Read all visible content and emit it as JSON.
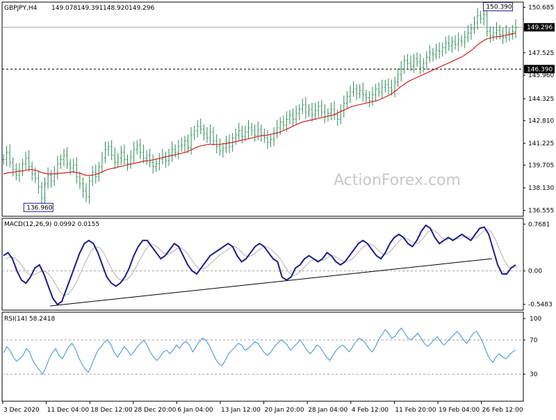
{
  "chart_data": [
    {
      "type": "line",
      "panel": "price",
      "header": {
        "symbol": "GBPJPY,H4",
        "open": "149.078",
        "high": "149.391",
        "low": "148.920",
        "close": "149.296"
      },
      "watermark": "ActionForex.com",
      "ylim": [
        136.2,
        151.0
      ],
      "y_ticks": [
        "150.685",
        "149.170",
        "147.525",
        "145.960",
        "144.325",
        "142.810",
        "141.225",
        "139.705",
        "138.130",
        "136.555"
      ],
      "x_ticks": [
        "3 Dec 2020",
        "11 Dec 04:00",
        "18 Dec 12:00",
        "28 Dec 20:00",
        "6 Jan 04:00",
        "13 Jan 12:00",
        "20 Jan 20:00",
        "28 Jan 04:00",
        "4 Feb 12:00",
        "11 Feb 20:00",
        "19 Feb 04:00",
        "26 Feb 12:00"
      ],
      "current_price": "149.296",
      "support_level": "146.390",
      "annotations": [
        {
          "text": "136.960",
          "value": 136.96,
          "bar_index": 16
        },
        {
          "text": "150.390",
          "value": 150.39,
          "bar_index": 160
        }
      ],
      "close_values": [
        140.1,
        140.6,
        139.9,
        139.4,
        139.0,
        139.3,
        139.8,
        140.2,
        139.6,
        139.1,
        138.8,
        138.2,
        137.4,
        138.4,
        139.0,
        138.6,
        139.2,
        139.8,
        140.1,
        140.4,
        139.8,
        139.5,
        139.7,
        138.9,
        138.4,
        137.9,
        137.5,
        138.6,
        139.2,
        138.9,
        139.6,
        140.2,
        140.8,
        141.0,
        140.4,
        139.9,
        140.2,
        140.6,
        140.1,
        139.8,
        140.3,
        140.8,
        141.1,
        140.6,
        140.2,
        140.4,
        139.9,
        139.6,
        139.8,
        140.1,
        140.3,
        140.0,
        140.4,
        140.8,
        140.6,
        141.0,
        141.1,
        141.4,
        140.9,
        141.8,
        142.1,
        142.4,
        142.2,
        141.9,
        141.6,
        142.0,
        141.4,
        141.0,
        140.7,
        140.9,
        141.3,
        141.0,
        141.6,
        141.8,
        142.1,
        141.7,
        142.0,
        142.3,
        142.1,
        141.8,
        142.2,
        141.8,
        141.6,
        141.3,
        141.5,
        141.9,
        142.3,
        142.7,
        142.5,
        142.9,
        143.2,
        142.9,
        143.3,
        143.6,
        143.9,
        143.4,
        143.6,
        143.2,
        143.5,
        143.8,
        143.4,
        143.1,
        143.3,
        143.6,
        143.2,
        142.9,
        143.5,
        144.0,
        144.5,
        144.8,
        145.0,
        144.7,
        144.9,
        144.6,
        144.4,
        144.2,
        144.6,
        145.0,
        144.8,
        145.1,
        145.3,
        145.1,
        144.9,
        145.5,
        146.0,
        146.4,
        147.0,
        146.8,
        146.6,
        147.1,
        146.9,
        146.5,
        146.8,
        147.2,
        147.5,
        147.4,
        147.7,
        147.6,
        147.9,
        148.2,
        148.0,
        148.3,
        148.1,
        148.4,
        148.3,
        148.6,
        148.9,
        149.2,
        149.6,
        150.1,
        149.9,
        150.2,
        149.0,
        148.7,
        148.9,
        149.1,
        148.8,
        148.6,
        148.9,
        148.8,
        149.0,
        149.3
      ],
      "sma_values": [
        139.1,
        139.15,
        139.2,
        139.2,
        139.25,
        139.3,
        139.3,
        139.35,
        139.4,
        139.4,
        139.35,
        139.3,
        139.2,
        139.15,
        139.1,
        139.1,
        139.1,
        139.1,
        139.15,
        139.15,
        139.2,
        139.2,
        139.25,
        139.2,
        139.15,
        139.1,
        139.0,
        139.0,
        139.0,
        139.05,
        139.1,
        139.2,
        139.3,
        139.4,
        139.45,
        139.5,
        139.55,
        139.6,
        139.65,
        139.7,
        139.75,
        139.8,
        139.85,
        139.9,
        139.95,
        140.0,
        140.0,
        140.05,
        140.1,
        140.15,
        140.2,
        140.25,
        140.3,
        140.35,
        140.4,
        140.45,
        140.5,
        140.55,
        140.6,
        140.7,
        140.8,
        140.9,
        141.0,
        141.05,
        141.1,
        141.15,
        141.15,
        141.15,
        141.15,
        141.15,
        141.2,
        141.2,
        141.25,
        141.3,
        141.35,
        141.4,
        141.45,
        141.5,
        141.55,
        141.6,
        141.65,
        141.7,
        141.75,
        141.75,
        141.8,
        141.85,
        141.9,
        141.95,
        142.0,
        142.1,
        142.2,
        142.3,
        142.4,
        142.5,
        142.6,
        142.7,
        142.75,
        142.8,
        142.85,
        142.9,
        142.95,
        143.0,
        143.05,
        143.1,
        143.15,
        143.2,
        143.3,
        143.4,
        143.5,
        143.6,
        143.7,
        143.8,
        143.85,
        143.9,
        143.95,
        144.0,
        144.05,
        144.1,
        144.15,
        144.2,
        144.3,
        144.4,
        144.5,
        144.6,
        144.75,
        144.9,
        145.1,
        145.25,
        145.4,
        145.55,
        145.65,
        145.75,
        145.85,
        145.95,
        146.05,
        146.15,
        146.25,
        146.35,
        146.45,
        146.55,
        146.65,
        146.75,
        146.85,
        146.95,
        147.05,
        147.15,
        147.25,
        147.4,
        147.55,
        147.7,
        147.9,
        148.1,
        148.25,
        148.4,
        148.5,
        148.55,
        148.6,
        148.65,
        148.65,
        148.7,
        148.75,
        148.8,
        148.85,
        148.9
      ]
    },
    {
      "type": "line",
      "panel": "macd",
      "label": "MACD(12,26,9) 0.0992 0.0155",
      "ylim": [
        -0.62,
        0.84
      ],
      "y_ticks": [
        "0.7681",
        "0.00",
        "-0.5483"
      ],
      "zero_line": 0.0,
      "macd_values": [
        0.25,
        0.3,
        0.2,
        0.0,
        -0.15,
        -0.2,
        -0.1,
        0.05,
        0.1,
        -0.05,
        -0.25,
        -0.45,
        -0.55,
        -0.5,
        -0.3,
        -0.1,
        0.1,
        0.3,
        0.45,
        0.5,
        0.45,
        0.3,
        0.1,
        -0.1,
        -0.2,
        -0.25,
        -0.2,
        -0.1,
        0.05,
        0.25,
        0.4,
        0.5,
        0.5,
        0.4,
        0.3,
        0.2,
        0.25,
        0.35,
        0.45,
        0.4,
        0.25,
        0.1,
        0.0,
        -0.05,
        0.05,
        0.15,
        0.25,
        0.3,
        0.35,
        0.4,
        0.45,
        0.4,
        0.25,
        0.15,
        0.2,
        0.3,
        0.4,
        0.45,
        0.4,
        0.3,
        0.2,
        0.15,
        -0.1,
        -0.15,
        -0.1,
        0.05,
        0.1,
        0.2,
        0.25,
        0.2,
        0.15,
        0.2,
        0.3,
        0.25,
        0.15,
        0.1,
        0.15,
        0.25,
        0.35,
        0.45,
        0.5,
        0.45,
        0.35,
        0.25,
        0.2,
        0.3,
        0.45,
        0.55,
        0.6,
        0.55,
        0.45,
        0.4,
        0.5,
        0.65,
        0.75,
        0.7,
        0.55,
        0.45,
        0.5,
        0.55,
        0.5,
        0.55,
        0.6,
        0.55,
        0.5,
        0.6,
        0.7,
        0.72,
        0.6,
        0.35,
        0.1,
        -0.05,
        -0.05,
        0.05,
        0.1
      ],
      "signal_values": [
        0.2,
        0.23,
        0.22,
        0.15,
        0.05,
        -0.05,
        -0.07,
        -0.04,
        0.0,
        -0.01,
        -0.08,
        -0.2,
        -0.33,
        -0.4,
        -0.38,
        -0.28,
        -0.15,
        0.02,
        0.18,
        0.32,
        0.4,
        0.38,
        0.28,
        0.12,
        -0.02,
        -0.12,
        -0.16,
        -0.14,
        -0.07,
        0.06,
        0.2,
        0.33,
        0.42,
        0.43,
        0.38,
        0.3,
        0.27,
        0.3,
        0.36,
        0.38,
        0.33,
        0.23,
        0.12,
        0.04,
        0.03,
        0.08,
        0.15,
        0.22,
        0.28,
        0.33,
        0.38,
        0.4,
        0.35,
        0.27,
        0.23,
        0.26,
        0.32,
        0.38,
        0.4,
        0.36,
        0.29,
        0.22,
        0.1,
        -0.02,
        -0.08,
        -0.05,
        0.02,
        0.1,
        0.17,
        0.19,
        0.17,
        0.18,
        0.23,
        0.25,
        0.21,
        0.16,
        0.15,
        0.19,
        0.26,
        0.35,
        0.42,
        0.44,
        0.41,
        0.34,
        0.27,
        0.28,
        0.35,
        0.44,
        0.52,
        0.54,
        0.5,
        0.45,
        0.46,
        0.54,
        0.64,
        0.68,
        0.63,
        0.55,
        0.51,
        0.53,
        0.52,
        0.53,
        0.56,
        0.56,
        0.53,
        0.56,
        0.63,
        0.68,
        0.65,
        0.52,
        0.34,
        0.17,
        0.06,
        0.05,
        0.07
      ]
    },
    {
      "type": "line",
      "panel": "rsi",
      "label": "RSI(14) 58.2418",
      "ylim": [
        0,
        100
      ],
      "y_ticks": [
        "100",
        "70",
        "30"
      ],
      "levels": [
        70,
        30
      ],
      "rsi_values": [
        55,
        62,
        58,
        50,
        45,
        48,
        52,
        60,
        56,
        46,
        40,
        35,
        30,
        38,
        48,
        55,
        60,
        52,
        48,
        55,
        62,
        66,
        60,
        50,
        42,
        36,
        32,
        40,
        50,
        58,
        62,
        68,
        70,
        64,
        55,
        50,
        56,
        62,
        58,
        52,
        56,
        62,
        66,
        70,
        64,
        56,
        50,
        46,
        50,
        56,
        58,
        54,
        58,
        64,
        60,
        66,
        68,
        64,
        56,
        62,
        68,
        72,
        70,
        64,
        56,
        48,
        42,
        40,
        46,
        54,
        58,
        62,
        66,
        64,
        58,
        60,
        64,
        68,
        66,
        60,
        55,
        52,
        56,
        62,
        66,
        70,
        68,
        64,
        58,
        62,
        66,
        70,
        64,
        58,
        54,
        58,
        64,
        62,
        56,
        50,
        46,
        52,
        58,
        62,
        64,
        60,
        56,
        62,
        68,
        72,
        70,
        66,
        60,
        56,
        62,
        70,
        76,
        82,
        78,
        72,
        74,
        80,
        84,
        78,
        72,
        70,
        74,
        78,
        72,
        66,
        62,
        66,
        70,
        74,
        68,
        64,
        68,
        72,
        76,
        80,
        76,
        70,
        66,
        72,
        78,
        80,
        74,
        66,
        56,
        48,
        44,
        50,
        54,
        50,
        48,
        52,
        56,
        58
      ]
    }
  ]
}
